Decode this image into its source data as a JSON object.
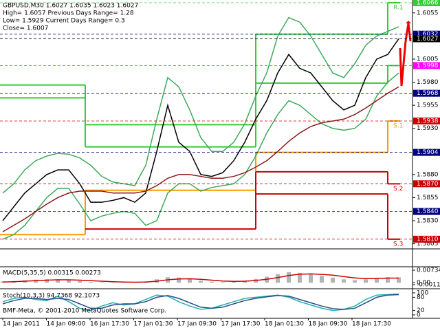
{
  "chart_data": [
    {
      "type": "line",
      "info": [
        "GBPUSD,M30 1.6027 1.6035 1.6023 1.6027",
        "High= 1.6057  Previous Days Range= 1.28",
        "Low= 1.5929  Current Days Range= 0.3",
        "Close= 1.6007"
      ],
      "ylim": [
        1.5801,
        1.6069
      ],
      "yticks": [
        1.6055,
        1.6005,
        {
          "value": 1.598,
          "label": "1.5980"
        },
        1.5955,
        {
          "value": 1.593,
          "label": "1.5930"
        },
        {
          "value": 1.588,
          "label": "1.5880"
        },
        1.5855,
        {
          "value": 1.583,
          "label": "1.5830"
        },
        1.5805
      ],
      "price_tags": [
        {
          "value": 1.6066,
          "color": "#33cc33"
        },
        {
          "value": 1.6032,
          "color": "#000080"
        },
        {
          "value": 1.6027,
          "color": "#000000"
        },
        {
          "value": 1.5998,
          "color": "#ff00ff"
        },
        {
          "value": 1.5968,
          "color": "#000080"
        },
        {
          "value": 1.5938,
          "color": "#cc0000"
        },
        {
          "value": 1.5904,
          "color": "#000080"
        },
        {
          "value": 1.587,
          "label": "1.5870",
          "color": "#cc0000"
        },
        {
          "value": 1.584,
          "label": "1.5840",
          "color": "#000080"
        },
        {
          "value": 1.581,
          "label": "1.5810",
          "color": "#cc0000"
        }
      ],
      "levels": [
        {
          "name": "R.1",
          "color": "#33cc33",
          "values": [
            1.5977,
            1.5934,
            1.6032,
            1.6066
          ]
        },
        {
          "color": "#33cc33",
          "values": [
            1.5963,
            1.591,
            1.5979,
            1.5998
          ]
        },
        {
          "name": "S.1",
          "color": "#ff9900",
          "values": [
            1.5815,
            1.5863,
            1.5904,
            1.5938
          ]
        },
        {
          "name": "S.2",
          "color": "#cc0000",
          "values": [
            null,
            1.5821,
            1.5883,
            1.587
          ]
        },
        {
          "name": "S.3",
          "color": "#cc0000",
          "values": [
            null,
            null,
            1.5859,
            1.581
          ]
        }
      ],
      "series": [
        {
          "color": "#000000",
          "values": [
            1.583,
            1.5845,
            1.586,
            1.587,
            1.588,
            1.5885,
            1.5885,
            1.587,
            1.585,
            1.585,
            1.5852,
            1.5855,
            1.585,
            1.586,
            1.5905,
            1.5955,
            1.5915,
            1.5905,
            1.588,
            1.5878,
            1.5882,
            1.5895,
            1.5915,
            1.594,
            1.596,
            1.599,
            1.601,
            1.5995,
            1.599,
            1.5975,
            1.596,
            1.595,
            1.5955,
            1.5985,
            1.6005,
            1.601,
            1.6027
          ]
        },
        {
          "color": "#3caa5a",
          "values": [
            1.586,
            1.587,
            1.5885,
            1.5895,
            1.59,
            1.5903,
            1.5902,
            1.5898,
            1.589,
            1.5878,
            1.5872,
            1.587,
            1.5868,
            1.589,
            1.594,
            1.5985,
            1.5975,
            1.595,
            1.592,
            1.5905,
            1.5905,
            1.5915,
            1.5935,
            1.5965,
            1.599,
            1.603,
            1.605,
            1.6045,
            1.603,
            1.601,
            1.599,
            1.5985,
            1.6,
            1.602,
            1.603,
            1.6035,
            1.604
          ]
        },
        {
          "color": "#3caa5a",
          "values": [
            1.581,
            1.5815,
            1.5825,
            1.584,
            1.5855,
            1.5865,
            1.5865,
            1.5848,
            1.583,
            1.5835,
            1.5838,
            1.584,
            1.5838,
            1.5825,
            1.583,
            1.586,
            1.587,
            1.587,
            1.5862,
            1.5866,
            1.5868,
            1.587,
            1.588,
            1.59,
            1.5925,
            1.5945,
            1.596,
            1.5955,
            1.5945,
            1.5935,
            1.593,
            1.5928,
            1.593,
            1.594,
            1.5965,
            1.598,
            1.599
          ]
        },
        {
          "color": "#8b1a1a",
          "values": [
            1.5818,
            1.5825,
            1.5832,
            1.584,
            1.5848,
            1.5855,
            1.586,
            1.5862,
            1.5862,
            1.5862,
            1.586,
            1.586,
            1.586,
            1.5862,
            1.5868,
            1.5876,
            1.588,
            1.588,
            1.5878,
            1.5876,
            1.5876,
            1.5878,
            1.5882,
            1.5888,
            1.5895,
            1.5905,
            1.5916,
            1.5925,
            1.5932,
            1.5936,
            1.5938,
            1.594,
            1.5945,
            1.5952,
            1.596,
            1.5968,
            1.5975
          ]
        }
      ]
    },
    {
      "type": "bar",
      "label": "MACD(5,35,5) 0.00315 0.00273",
      "ylim": [
        -0.00111,
        0.00734
      ],
      "yticks": [
        0.00734,
        {
          "value": 0,
          "label": "0.00"
        },
        -0.00111
      ],
      "series": [
        {
          "color": "#b4b4b4",
          "values": [
            0.0008,
            0.001,
            0.0014,
            0.0018,
            0.002,
            0.002,
            0.0016,
            0.001,
            0.0005,
            0.0003,
            0.0002,
            0.0003,
            0.0003,
            0.0008,
            0.002,
            0.0032,
            0.003,
            0.0022,
            0.0012,
            0.0006,
            0.0004,
            0.0006,
            0.0012,
            0.0022,
            0.0035,
            0.005,
            0.0062,
            0.0058,
            0.005,
            0.004,
            0.003,
            0.002,
            0.0015,
            0.002,
            0.0028,
            0.0032,
            0.00315
          ]
        },
        {
          "color": "#cc0000",
          "values": [
            0.0004,
            0.0006,
            0.0009,
            0.0012,
            0.0015,
            0.0017,
            0.0017,
            0.0015,
            0.0012,
            0.0009,
            0.0006,
            0.0004,
            0.0003,
            0.0004,
            0.0009,
            0.0017,
            0.0022,
            0.0023,
            0.002,
            0.0015,
            0.001,
            0.0008,
            0.0009,
            0.0013,
            0.002,
            0.003,
            0.0042,
            0.005,
            0.0052,
            0.0049,
            0.0044,
            0.0036,
            0.0028,
            0.0024,
            0.0025,
            0.0027,
            0.00273
          ]
        }
      ]
    },
    {
      "type": "line",
      "label": "Stoch(10,3,3) 94.7368 92.1073",
      "footer": "BMF-Meta, © 2001-2010 MetaQuotes Software Corp.",
      "ylim": [
        0,
        100
      ],
      "yticks": [
        100,
        80,
        20,
        0
      ],
      "x_labels": [
        "14 Jan 2011",
        "14 Jan 09:00",
        "16 Jan 17:30",
        "17 Jan 01:30",
        "17 Jan 09:30",
        "17 Jan 17:30",
        "18 Jan 01:30",
        "18 Jan 09:30",
        "18 Jan 17:30"
      ],
      "series": [
        {
          "color": "#20b2aa",
          "values": [
            60,
            75,
            80,
            70,
            65,
            85,
            60,
            30,
            20,
            40,
            55,
            45,
            50,
            70,
            90,
            85,
            60,
            40,
            25,
            30,
            45,
            60,
            75,
            80,
            85,
            90,
            80,
            60,
            45,
            30,
            20,
            25,
            40,
            70,
            90,
            92,
            94.7368
          ]
        },
        {
          "color": "#2a4a8a",
          "values": [
            50,
            65,
            75,
            75,
            70,
            75,
            70,
            50,
            30,
            30,
            45,
            50,
            50,
            60,
            80,
            88,
            75,
            55,
            35,
            30,
            35,
            50,
            65,
            75,
            82,
            88,
            85,
            70,
            55,
            40,
            28,
            25,
            30,
            55,
            80,
            90,
            92.1073
          ]
        }
      ]
    }
  ]
}
